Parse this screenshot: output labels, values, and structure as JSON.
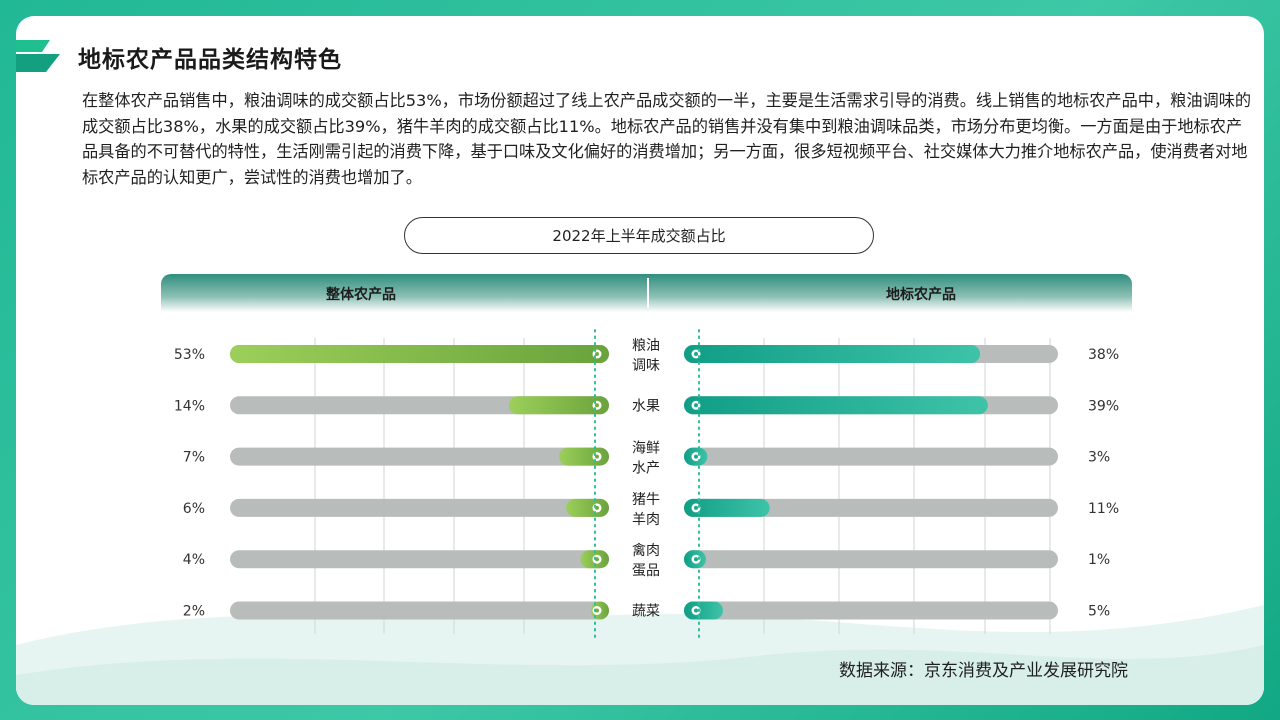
{
  "page": {
    "title": "地标农产品品类结构特色",
    "paragraph": "在整体农产品销售中，粮油调味的成交额占比53%，市场份额超过了线上农产品成交额的一半，主要是生活需求引导的消费。线上销售的地标农产品中，粮油调味的成交额占比38%，水果的成交额占比39%，猪牛羊肉的成交额占比11%。地标农产品的销售并没有集中到粮油调味品类，市场分布更均衡。一方面是由于地标农产品具备的不可替代的特性，生活刚需引起的消费下降，基于口味及文化偏好的消费增加；另一方面，很多短视频平台、社交媒体大力推介地标农产品，使消费者对地标农产品的认知更广，尝试性的消费也增加了。",
    "source": "数据来源：京东消费及产业发展研究院"
  },
  "colors": {
    "frame": "#21b895",
    "left_series": "#6fae3e",
    "right_series": "#17a88f",
    "track": "#b8bcbb",
    "divider": "#2fbf97"
  },
  "chart_data": {
    "type": "bar",
    "title": "2022年上半年成交额占比",
    "categories": [
      "粮油调味",
      "水果",
      "海鲜水产",
      "猪牛羊肉",
      "禽肉蛋品",
      "蔬菜"
    ],
    "category_lines": [
      [
        "粮油",
        "调味"
      ],
      [
        "水果"
      ],
      [
        "海鲜",
        "水产"
      ],
      [
        "猪牛",
        "羊肉"
      ],
      [
        "禽肉",
        "蛋品"
      ],
      [
        "蔬菜"
      ]
    ],
    "series": [
      {
        "name": "整体农产品",
        "values": [
          53,
          14,
          7,
          6,
          4,
          2
        ],
        "labels": [
          "53%",
          "14%",
          "7%",
          "6%",
          "4%",
          "2%"
        ],
        "direction": "left"
      },
      {
        "name": "地标农产品",
        "values": [
          38,
          39,
          3,
          11,
          1,
          5
        ],
        "labels": [
          "38%",
          "39%",
          "3%",
          "11%",
          "1%",
          "5%"
        ],
        "direction": "right"
      }
    ],
    "unit": "%",
    "scale_max_left": 53,
    "scale_max_right": 48
  }
}
